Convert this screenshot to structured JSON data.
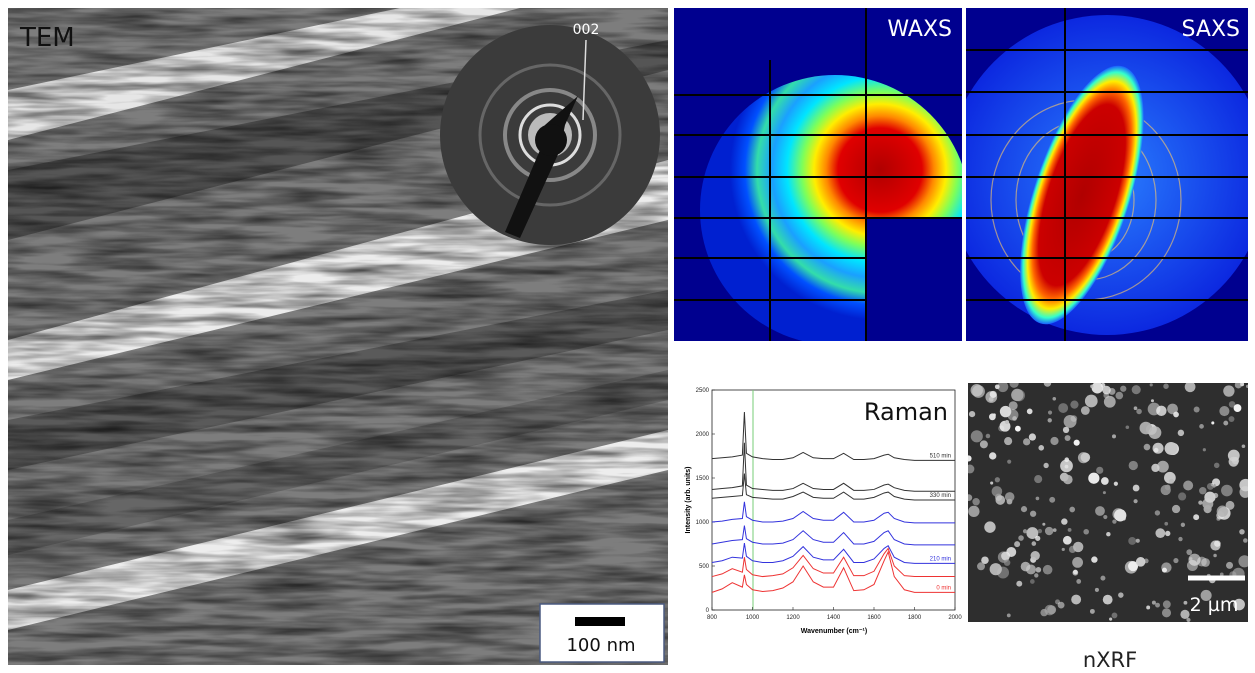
{
  "panels": {
    "tem": {
      "label": "TEM",
      "inset_label": "002",
      "scale_bar": "100 nm"
    },
    "waxs": {
      "label": "WAXS"
    },
    "saxs": {
      "label": "SAXS"
    },
    "nxrf": {
      "label": "nXRF",
      "scale_bar": "2 µm"
    }
  },
  "chart_data": {
    "type": "line",
    "title": "Raman",
    "x_label": "Wavenumber (cm⁻¹)",
    "y_label": "Intensity (arb. units)",
    "x": [
      800,
      850,
      900,
      950,
      960,
      970,
      1000,
      1050,
      1100,
      1150,
      1200,
      1250,
      1300,
      1350,
      1400,
      1450,
      1500,
      1550,
      1600,
      1650,
      1670,
      1700,
      1750,
      1800,
      1900,
      2000
    ],
    "xlim": [
      800,
      2000
    ],
    "xticks": [
      800,
      1000,
      1200,
      1400,
      1600,
      1800,
      2000
    ],
    "ylim": [
      0,
      2500
    ],
    "yticks": [
      0,
      500,
      1000,
      1500,
      2000,
      2500
    ],
    "series": [
      {
        "name": "510 min",
        "color": "#333333",
        "values": [
          1720,
          1730,
          1740,
          1760,
          2250,
          1780,
          1740,
          1720,
          1710,
          1710,
          1730,
          1790,
          1730,
          1720,
          1720,
          1780,
          1710,
          1710,
          1720,
          1760,
          1770,
          1730,
          1710,
          1700,
          1700,
          1700
        ]
      },
      {
        "color": "#333333",
        "values": [
          1370,
          1380,
          1390,
          1410,
          1900,
          1420,
          1380,
          1370,
          1360,
          1360,
          1380,
          1440,
          1380,
          1370,
          1370,
          1440,
          1360,
          1360,
          1370,
          1420,
          1430,
          1390,
          1360,
          1350,
          1350,
          1350
        ]
      },
      {
        "name": "330 min",
        "color": "#333333",
        "values": [
          1270,
          1280,
          1290,
          1300,
          1550,
          1310,
          1280,
          1270,
          1260,
          1260,
          1290,
          1340,
          1280,
          1270,
          1270,
          1340,
          1260,
          1260,
          1280,
          1330,
          1340,
          1290,
          1260,
          1250,
          1250,
          1250
        ]
      },
      {
        "color": "#3333dd",
        "values": [
          1000,
          1010,
          1030,
          1040,
          1230,
          1060,
          1020,
          1000,
          1000,
          1010,
          1040,
          1120,
          1040,
          1020,
          1020,
          1110,
          1000,
          1000,
          1020,
          1100,
          1110,
          1040,
          1000,
          990,
          990,
          990
        ]
      },
      {
        "color": "#3333dd",
        "values": [
          750,
          770,
          790,
          800,
          960,
          810,
          770,
          750,
          750,
          760,
          800,
          900,
          800,
          770,
          770,
          880,
          750,
          750,
          780,
          880,
          900,
          800,
          750,
          740,
          740,
          740
        ]
      },
      {
        "name": "210 min",
        "color": "#3333dd",
        "values": [
          540,
          560,
          600,
          590,
          760,
          610,
          560,
          540,
          540,
          560,
          610,
          720,
          600,
          570,
          570,
          690,
          540,
          540,
          580,
          700,
          730,
          600,
          540,
          530,
          530,
          530
        ]
      },
      {
        "color": "#ee3333",
        "values": [
          380,
          410,
          470,
          430,
          600,
          460,
          400,
          380,
          390,
          410,
          480,
          620,
          470,
          420,
          420,
          600,
          390,
          390,
          440,
          640,
          700,
          500,
          390,
          380,
          380,
          380
        ]
      },
      {
        "name": "0 min",
        "color": "#ee3333",
        "values": [
          200,
          240,
          310,
          260,
          400,
          290,
          230,
          210,
          220,
          250,
          320,
          500,
          320,
          260,
          260,
          480,
          220,
          230,
          290,
          560,
          660,
          380,
          230,
          200,
          200,
          200
        ]
      }
    ]
  }
}
